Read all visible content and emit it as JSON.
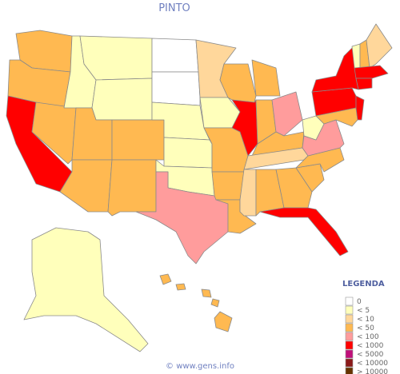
{
  "title": "PINTO",
  "legend": {
    "title": "LEGENDA",
    "items": [
      {
        "label": "0",
        "color": "#ffffff"
      },
      {
        "label": "< 5",
        "color": "#ffffbb"
      },
      {
        "label": "< 10",
        "color": "#ffd79b"
      },
      {
        "label": "< 50",
        "color": "#ffb951"
      },
      {
        "label": "< 100",
        "color": "#ff9c9c"
      },
      {
        "label": "< 1000",
        "color": "#ff0000"
      },
      {
        "label": "< 5000",
        "color": "#c0107a"
      },
      {
        "label": "< 10000",
        "color": "#8b1a1a"
      },
      {
        "label": "> 10000",
        "color": "#663300"
      }
    ]
  },
  "regions": [
    3,
    3,
    5,
    3,
    1,
    1,
    1,
    3,
    3,
    3,
    3,
    0,
    0,
    1,
    1,
    1,
    4,
    2,
    1,
    3,
    3,
    3,
    3,
    5,
    3,
    3,
    4,
    3,
    2,
    2,
    3,
    3,
    5,
    3,
    3,
    4,
    1,
    5,
    5,
    3,
    5,
    1,
    3,
    2,
    5,
    5,
    1,
    3
  ],
  "footer": "© www.gens.info"
}
